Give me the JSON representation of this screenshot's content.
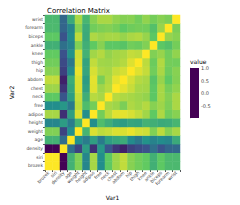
{
  "chart_data": {
    "type": "heatmap",
    "title": "Correlation Matrix",
    "x_label": "Var1",
    "y_label": "Var2",
    "legend_title": "value",
    "categories": [
      "brozek",
      "siri",
      "density",
      "age",
      "weight",
      "height",
      "adipos",
      "free",
      "neck",
      "chest",
      "abdom",
      "hip",
      "thigh",
      "knee",
      "ankle",
      "biceps",
      "forearm",
      "wrist"
    ],
    "matrix": [
      [
        1,
        1.0,
        -0.99,
        0.29,
        0.61,
        -0.09,
        0.73,
        -0.02,
        0.49,
        0.7,
        0.81,
        0.63,
        0.56,
        0.51,
        0.27,
        0.49,
        0.36,
        0.35
      ],
      [
        1.0,
        1,
        -0.99,
        0.29,
        0.61,
        -0.09,
        0.73,
        -0.02,
        0.49,
        0.7,
        0.81,
        0.63,
        0.56,
        0.51,
        0.27,
        0.49,
        0.36,
        0.35
      ],
      [
        -0.99,
        -0.99,
        1,
        -0.28,
        -0.59,
        0.1,
        -0.71,
        0.05,
        -0.47,
        -0.68,
        -0.8,
        -0.61,
        -0.55,
        -0.5,
        -0.26,
        -0.49,
        -0.35,
        -0.33
      ],
      [
        0.29,
        0.29,
        -0.28,
        1,
        -0.01,
        -0.17,
        0.12,
        -0.18,
        0.11,
        0.18,
        0.23,
        -0.05,
        -0.2,
        0.02,
        -0.11,
        -0.04,
        -0.09,
        0.21
      ],
      [
        0.61,
        0.61,
        -0.59,
        -0.01,
        1,
        0.31,
        0.89,
        0.8,
        0.83,
        0.89,
        0.89,
        0.94,
        0.87,
        0.85,
        0.61,
        0.8,
        0.63,
        0.73
      ],
      [
        -0.09,
        -0.09,
        0.1,
        -0.17,
        0.31,
        1,
        -0.02,
        0.38,
        0.25,
        0.13,
        0.09,
        0.17,
        0.15,
        0.29,
        0.26,
        0.21,
        0.23,
        0.32
      ],
      [
        0.73,
        0.73,
        -0.71,
        0.12,
        0.89,
        -0.02,
        1,
        0.57,
        0.78,
        0.91,
        0.92,
        0.88,
        0.81,
        0.71,
        0.5,
        0.75,
        0.56,
        0.63
      ],
      [
        -0.02,
        -0.02,
        0.05,
        -0.18,
        0.8,
        0.38,
        0.57,
        1,
        0.74,
        0.7,
        0.59,
        0.75,
        0.71,
        0.77,
        0.63,
        0.7,
        0.6,
        0.74
      ],
      [
        0.49,
        0.49,
        -0.47,
        0.11,
        0.83,
        0.25,
        0.78,
        0.74,
        1,
        0.78,
        0.75,
        0.73,
        0.7,
        0.67,
        0.48,
        0.73,
        0.62,
        0.74
      ],
      [
        0.7,
        0.7,
        -0.68,
        0.18,
        0.89,
        0.13,
        0.91,
        0.7,
        0.78,
        1,
        0.92,
        0.83,
        0.73,
        0.72,
        0.48,
        0.73,
        0.58,
        0.66
      ],
      [
        0.81,
        0.81,
        -0.8,
        0.23,
        0.89,
        0.09,
        0.92,
        0.59,
        0.75,
        0.92,
        1,
        0.87,
        0.77,
        0.74,
        0.45,
        0.68,
        0.5,
        0.62
      ],
      [
        0.63,
        0.63,
        -0.61,
        -0.05,
        0.94,
        0.17,
        0.88,
        0.75,
        0.73,
        0.83,
        0.87,
        1,
        0.9,
        0.82,
        0.56,
        0.74,
        0.55,
        0.63
      ],
      [
        0.56,
        0.56,
        -0.55,
        -0.2,
        0.87,
        0.15,
        0.81,
        0.71,
        0.7,
        0.73,
        0.77,
        0.9,
        1,
        0.8,
        0.54,
        0.76,
        0.57,
        0.56
      ],
      [
        0.51,
        0.51,
        -0.5,
        0.02,
        0.85,
        0.29,
        0.71,
        0.77,
        0.67,
        0.72,
        0.74,
        0.82,
        0.8,
        1,
        0.61,
        0.68,
        0.56,
        0.66
      ],
      [
        0.27,
        0.27,
        -0.26,
        -0.11,
        0.61,
        0.26,
        0.5,
        0.63,
        0.48,
        0.48,
        0.45,
        0.56,
        0.54,
        0.61,
        1,
        0.48,
        0.42,
        0.57
      ],
      [
        0.49,
        0.49,
        -0.49,
        -0.04,
        0.8,
        0.21,
        0.75,
        0.7,
        0.73,
        0.73,
        0.68,
        0.74,
        0.76,
        0.68,
        0.48,
        1,
        0.68,
        0.63
      ],
      [
        0.36,
        0.36,
        -0.35,
        -0.09,
        0.63,
        0.23,
        0.56,
        0.6,
        0.62,
        0.58,
        0.5,
        0.55,
        0.57,
        0.56,
        0.42,
        0.68,
        1,
        0.59
      ],
      [
        0.35,
        0.35,
        -0.33,
        0.21,
        0.73,
        0.32,
        0.63,
        0.74,
        0.74,
        0.66,
        0.62,
        0.63,
        0.56,
        0.66,
        0.57,
        0.63,
        0.59,
        1
      ]
    ],
    "color_range": [
      -1,
      1
    ],
    "color_ticks": [
      {
        "value": -0.5,
        "label": "-0.5"
      },
      {
        "value": 0,
        "label": "0.0"
      },
      {
        "value": 0.5,
        "label": "0.5"
      },
      {
        "value": 1,
        "label": "1.0"
      }
    ]
  }
}
